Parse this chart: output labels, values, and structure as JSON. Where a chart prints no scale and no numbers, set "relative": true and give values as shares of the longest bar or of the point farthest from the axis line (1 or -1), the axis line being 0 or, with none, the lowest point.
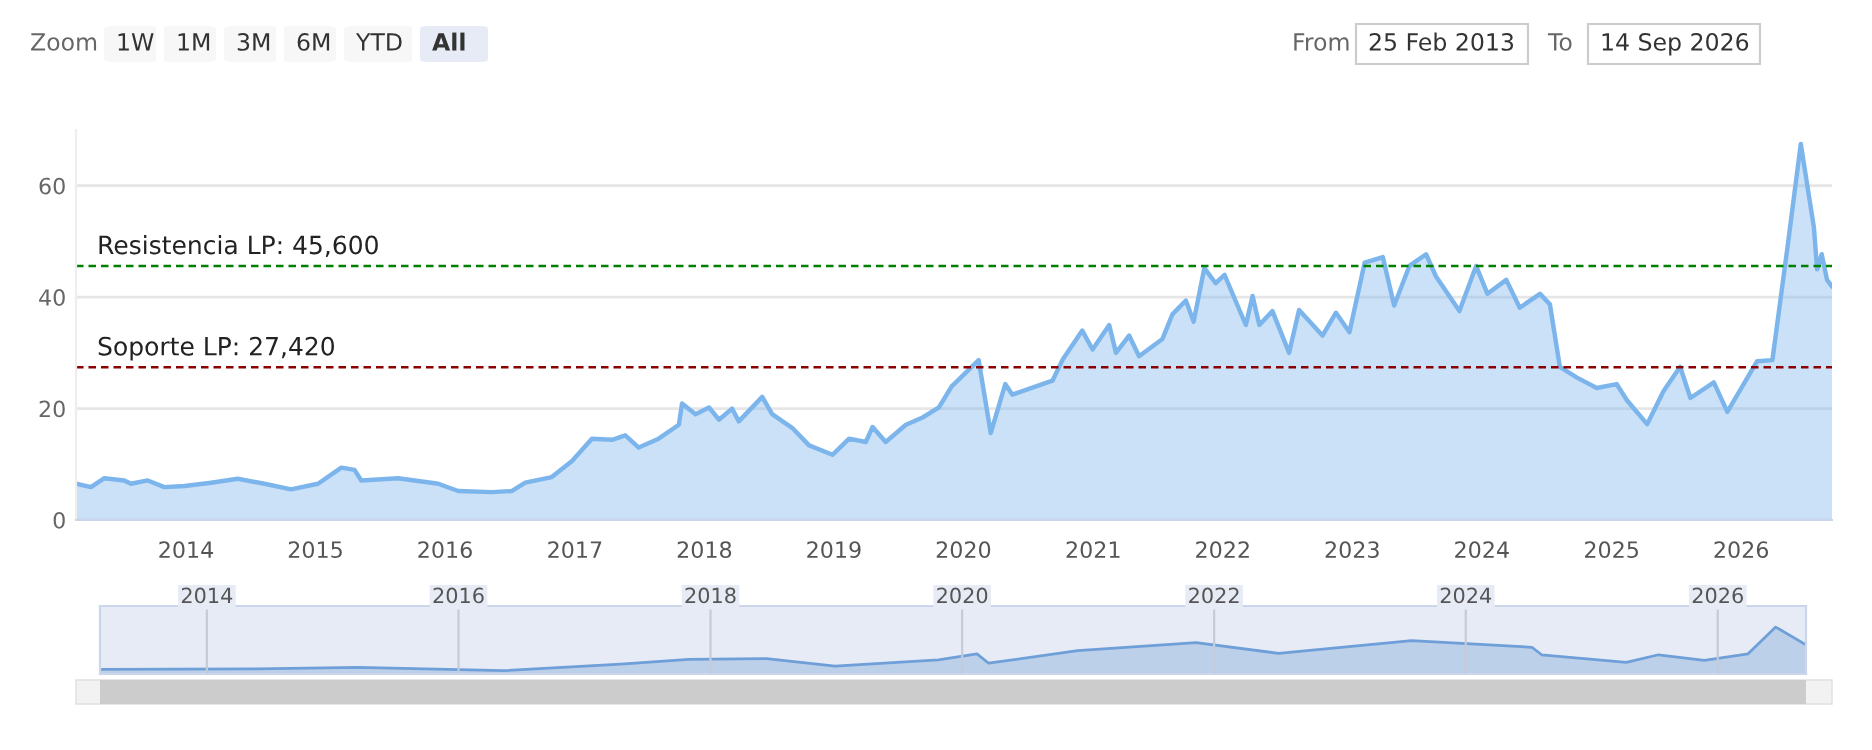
{
  "chart_data": [
    {
      "type": "area",
      "xlim": [
        "2013-02-25",
        "2026-09-14"
      ],
      "ylim": [
        0,
        70
      ],
      "yticks": [
        0,
        20,
        40,
        60
      ],
      "xticks": [
        "2014",
        "2015",
        "2016",
        "2017",
        "2018",
        "2019",
        "2020",
        "2021",
        "2022",
        "2023",
        "2024",
        "2025",
        "2026"
      ],
      "grid": "y",
      "legend": false,
      "annotations": [
        "Zoom",
        "1W",
        "1M",
        "3M",
        "6M",
        "YTD",
        "All",
        "From",
        "25 Feb 2013",
        "To",
        "14 Sep 2026"
      ],
      "ref_lines": [
        {
          "axis": "y",
          "value": 45.6,
          "label": "Resistencia LP: 45,600",
          "color": "#008000",
          "line_style": "dashed"
        },
        {
          "axis": "y",
          "value": 27.42,
          "label": "Soporte LP: 27,420",
          "color": "#8b0000",
          "line_style": "dashed"
        }
      ],
      "series": [
        {
          "color": "#7cb5ec",
          "x": [
            "2013-02-25",
            "2013-04-08",
            "2013-05-16",
            "2013-07-11",
            "2013-07-30",
            "2013-09-15",
            "2013-11-01",
            "2013-12-28",
            "2014-03-13",
            "2014-05-27",
            "2014-08-10",
            "2014-10-24",
            "2015-01-08",
            "2015-03-15",
            "2015-04-21",
            "2015-05-10",
            "2015-08-22",
            "2015-12-13",
            "2016-02-07",
            "2016-05-11",
            "2016-07-07",
            "2016-08-14",
            "2016-10-28",
            "2016-12-24",
            "2017-02-18",
            "2017-04-16",
            "2017-05-23",
            "2017-06-30",
            "2017-08-25",
            "2017-10-21",
            "2017-10-30",
            "2017-12-07",
            "2018-01-14",
            "2018-02-11",
            "2018-03-20",
            "2018-04-08",
            "2018-06-13",
            "2018-07-11",
            "2018-09-06",
            "2018-10-23",
            "2018-12-28",
            "2019-02-13",
            "2019-04-01",
            "2019-04-20",
            "2019-05-27",
            "2019-07-23",
            "2019-09-08",
            "2019-10-24",
            "2019-11-29",
            "2020-02-13",
            "2020-03-18",
            "2020-04-28",
            "2020-05-18",
            "2020-09-08",
            "2020-10-06",
            "2020-12-01",
            "2020-12-30",
            "2021-02-15",
            "2021-03-06",
            "2021-04-12",
            "2021-05-10",
            "2021-07-15",
            "2021-08-12",
            "2021-09-19",
            "2021-10-11",
            "2021-11-10",
            "2021-12-12",
            "2022-01-06",
            "2022-03-07",
            "2022-03-26",
            "2022-04-14",
            "2022-05-21",
            "2022-07-07",
            "2022-08-04",
            "2022-10-09",
            "2022-11-16",
            "2022-12-24",
            "2023-02-05",
            "2023-03-28",
            "2023-04-29",
            "2023-06-11",
            "2023-07-28",
            "2023-08-25",
            "2023-10-30",
            "2023-12-16",
            "2024-01-17",
            "2024-03-10",
            "2024-04-17",
            "2024-06-13",
            "2024-07-11",
            "2024-08-08",
            "2024-09-24",
            "2024-11-20",
            "2025-01-15",
            "2025-02-13",
            "2025-04-11",
            "2025-05-27",
            "2025-07-13",
            "2025-08-11",
            "2025-10-16",
            "2025-11-23",
            "2026-01-08",
            "2026-02-15",
            "2026-03-30",
            "2026-05-11",
            "2026-06-18",
            "2026-07-25",
            "2026-08-03",
            "2026-08-16",
            "2026-08-31",
            "2026-09-14"
          ],
          "values": [
            6.5,
            5.9,
            7.5,
            7.1,
            6.5,
            7.1,
            5.9,
            6.1,
            6.7,
            7.4,
            6.5,
            5.5,
            6.5,
            9.4,
            9,
            7.1,
            7.5,
            6.5,
            5.2,
            5,
            5.2,
            6.7,
            7.7,
            10.6,
            14.6,
            14.4,
            15.2,
            13,
            14.6,
            17.1,
            20.9,
            19,
            20.2,
            18,
            20,
            17.7,
            22.1,
            19,
            16.5,
            13.4,
            11.7,
            14.6,
            14,
            16.7,
            14,
            17.1,
            18.4,
            20.2,
            24,
            28.7,
            15.6,
            24.4,
            22.5,
            25,
            28.7,
            34,
            30.6,
            35,
            30,
            33.1,
            29.4,
            32.5,
            36.9,
            39.4,
            35.6,
            45.2,
            42.5,
            44,
            35,
            40.2,
            35,
            37.5,
            30,
            37.7,
            33.1,
            37.2,
            33.7,
            46.2,
            47.2,
            38.5,
            45.6,
            47.7,
            43.7,
            37.5,
            45.6,
            40.6,
            43.1,
            38.1,
            40.6,
            38.7,
            27.5,
            25.6,
            23.7,
            24.4,
            21.5,
            17.2,
            23.1,
            27.5,
            21.9,
            24.7,
            19.4,
            24.4,
            28.5,
            28.7,
            48.7,
            67.5,
            52.5,
            45,
            47.7,
            43.1,
            41.9
          ]
        }
      ]
    },
    {
      "type": "area",
      "relative": true,
      "xlim": [
        "2013-02-25",
        "2026-09-14"
      ],
      "grid": "x",
      "xticks": [
        "2014",
        "2016",
        "2018",
        "2020",
        "2022",
        "2024",
        "2026"
      ],
      "series": [
        {
          "color": "#6f9fd8",
          "x": [
            "2013-02-25",
            "2014-05-27",
            "2015-03-15",
            "2016-05-11",
            "2017-04-16",
            "2017-10-30",
            "2018-06-13",
            "2018-12-28",
            "2019-10-24",
            "2020-02-13",
            "2020-03-18",
            "2020-12-01",
            "2021-11-10",
            "2022-07-07",
            "2023-07-28",
            "2024-07-11",
            "2024-08-08",
            "2025-04-11",
            "2025-07-13",
            "2025-11-23",
            "2026-03-30",
            "2026-06-18",
            "2026-09-14"
          ],
          "values": [
            0.1,
            0.11,
            0.14,
            0.07,
            0.21,
            0.31,
            0.33,
            0.17,
            0.3,
            0.43,
            0.23,
            0.5,
            0.67,
            0.44,
            0.71,
            0.57,
            0.41,
            0.25,
            0.41,
            0.29,
            0.43,
            1,
            0.62
          ]
        }
      ]
    }
  ]
}
